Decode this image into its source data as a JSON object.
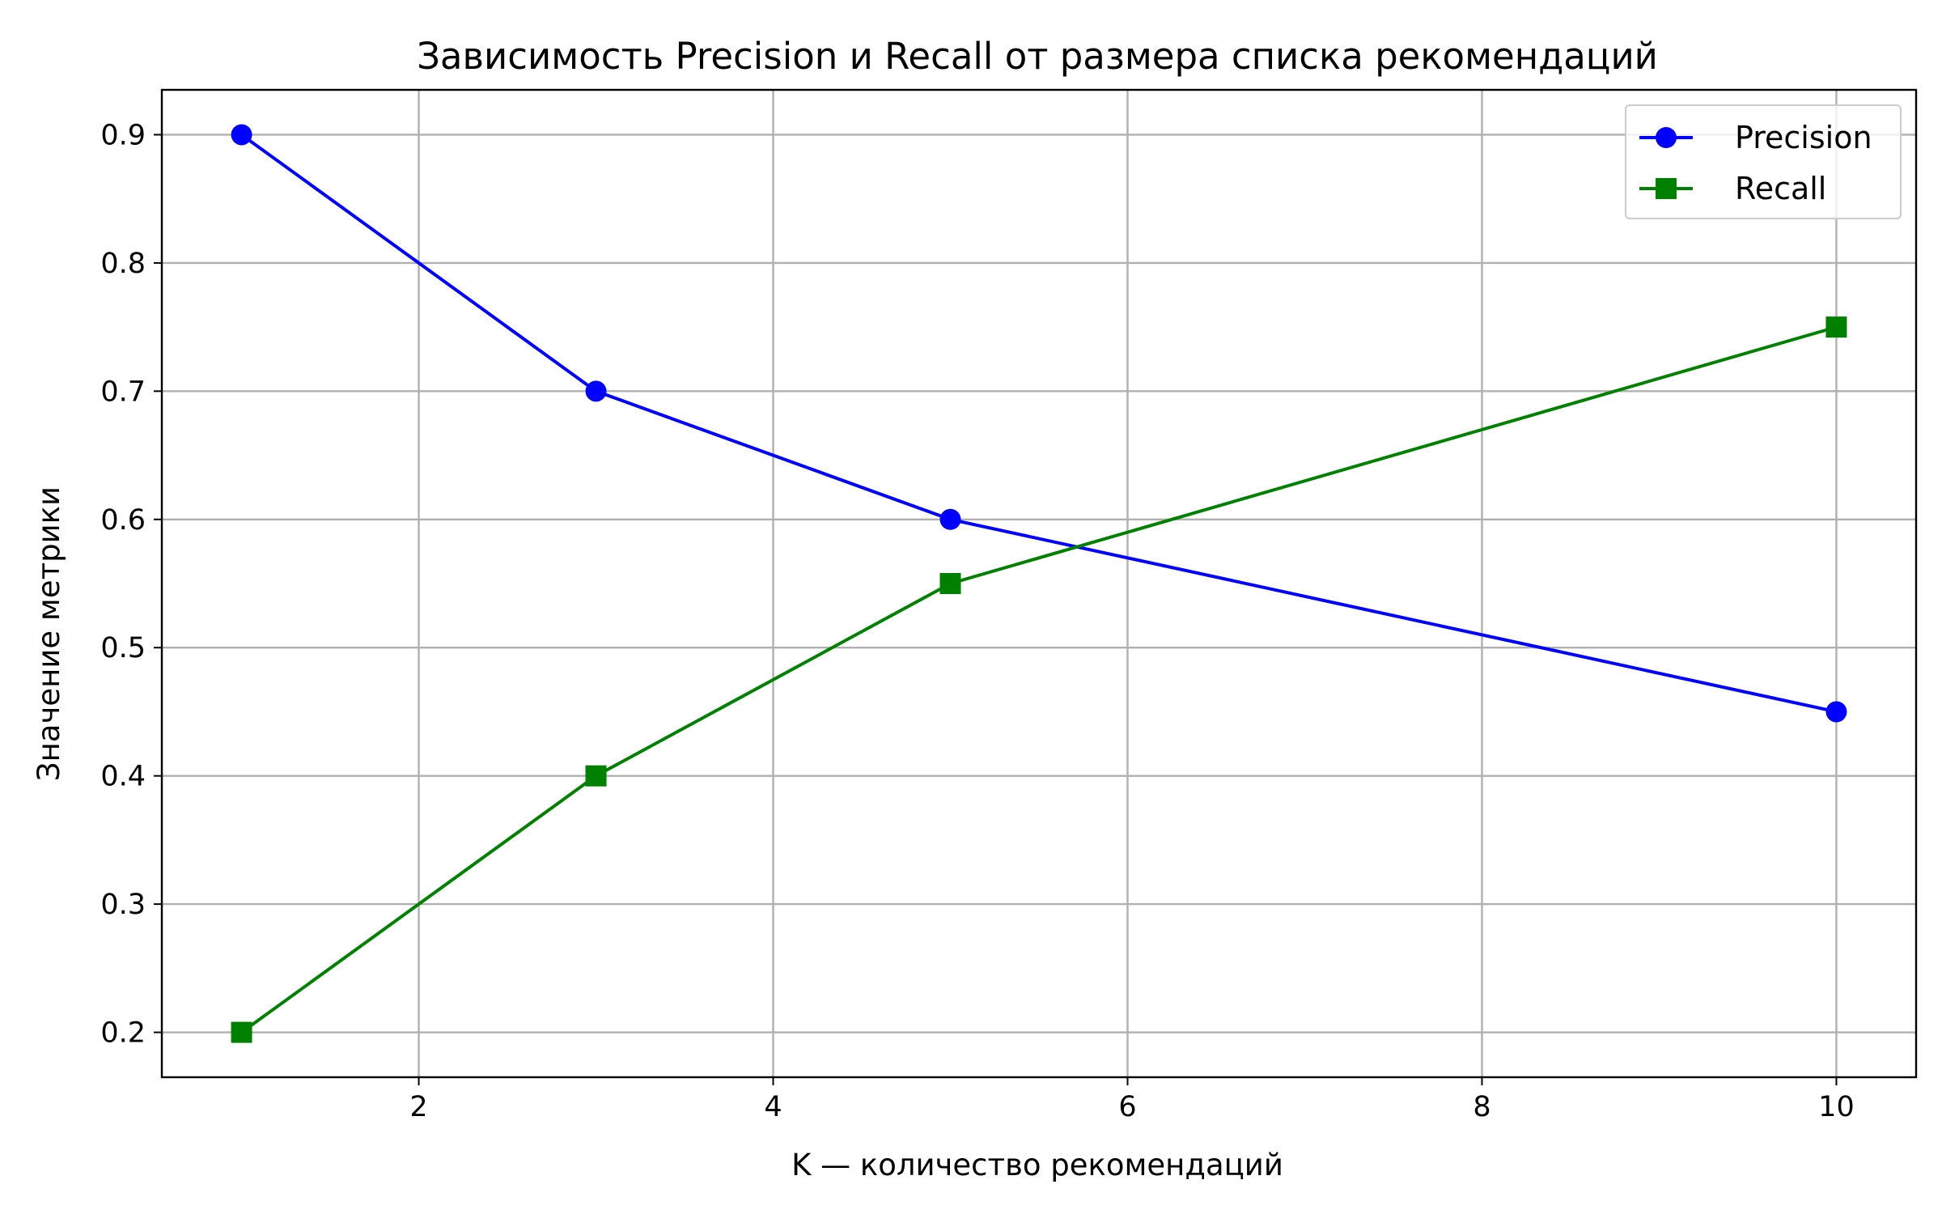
{
  "chart_data": {
    "type": "line",
    "title": "Зависимость Precision и Recall от размера списка рекомендаций",
    "xlabel": "K — количество рекомендаций",
    "ylabel": "Значение метрики",
    "x": [
      1,
      3,
      5,
      10
    ],
    "xlim": [
      0.55,
      10.45
    ],
    "ylim": [
      0.165,
      0.935
    ],
    "xticks": [
      2,
      4,
      6,
      8,
      10
    ],
    "yticks": [
      0.2,
      0.3,
      0.4,
      0.5,
      0.6,
      0.7,
      0.8,
      0.9
    ],
    "xtick_labels": [
      "2",
      "4",
      "6",
      "8",
      "10"
    ],
    "ytick_labels": [
      "0.2",
      "0.3",
      "0.4",
      "0.5",
      "0.6",
      "0.7",
      "0.8",
      "0.9"
    ],
    "grid": true,
    "legend_position": "top-right",
    "series": [
      {
        "name": "Precision",
        "values": [
          0.9,
          0.7,
          0.6,
          0.45
        ],
        "color": "#0000ff",
        "marker": "circle"
      },
      {
        "name": "Recall",
        "values": [
          0.2,
          0.4,
          0.55,
          0.75
        ],
        "color": "#008000",
        "marker": "square"
      }
    ]
  }
}
